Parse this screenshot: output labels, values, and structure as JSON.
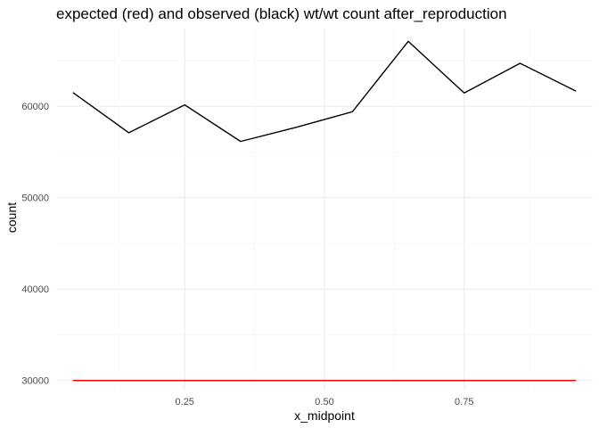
{
  "chart_data": {
    "type": "line",
    "title": "expected (red) and observed (black) wt/wt count after_reproduction",
    "xlabel": "x_midpoint",
    "ylabel": "count",
    "xlim": [
      0.02,
      0.98
    ],
    "ylim": [
      29000,
      68500
    ],
    "x_ticks": [
      0.25,
      0.5,
      0.75
    ],
    "x_tick_labels": [
      "0.25",
      "0.50",
      "0.75"
    ],
    "x_minor_ticks": [
      0.125,
      0.375,
      0.625,
      0.875
    ],
    "y_ticks": [
      30000,
      40000,
      50000,
      60000
    ],
    "y_tick_labels": [
      "30000",
      "40000",
      "50000",
      "60000"
    ],
    "y_minor_ticks": [
      35000,
      45000,
      55000,
      65000
    ],
    "grid": true,
    "series": [
      {
        "color": "#000000",
        "x": [
          0.05,
          0.15,
          0.25,
          0.35,
          0.45,
          0.55,
          0.65,
          0.75,
          0.85,
          0.95
        ],
        "y": [
          61500,
          57100,
          60150,
          56150,
          57700,
          59400,
          67100,
          61450,
          64700,
          61650
        ]
      },
      {
        "color": "#ff0000",
        "x": [
          0.05,
          0.15,
          0.25,
          0.35,
          0.45,
          0.55,
          0.65,
          0.75,
          0.85,
          0.95
        ],
        "y": [
          30000,
          30000,
          30000,
          30000,
          30000,
          30000,
          30000,
          30000,
          30000,
          30000
        ]
      }
    ]
  }
}
